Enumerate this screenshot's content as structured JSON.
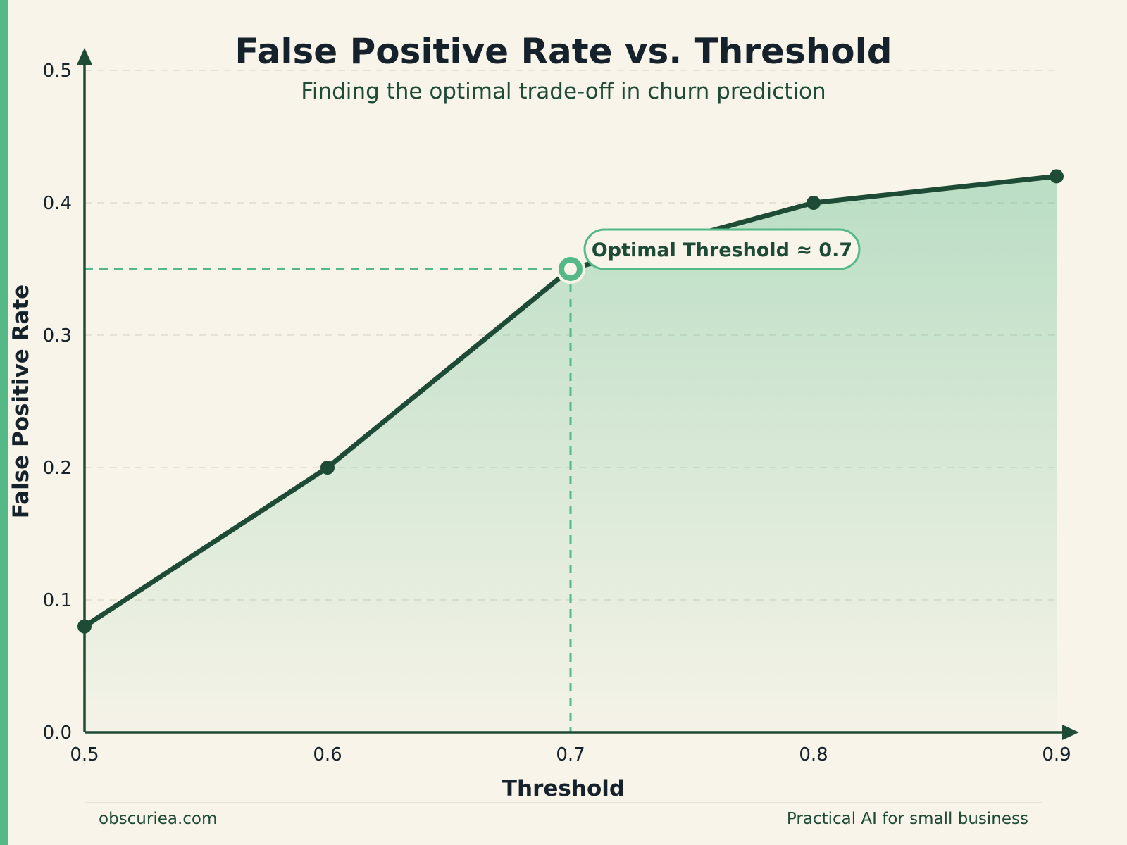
{
  "chart_data": {
    "type": "line",
    "title": "False Positive Rate vs. Threshold",
    "subtitle": "Finding the optimal trade-off in churn prediction",
    "xlabel": "Threshold",
    "ylabel": "False Positive Rate",
    "x": [
      0.5,
      0.6,
      0.7,
      0.8,
      0.9
    ],
    "series": [
      {
        "values": [
          0.08,
          0.2,
          0.35,
          0.4,
          0.42
        ]
      }
    ],
    "xlim": [
      0.5,
      0.9
    ],
    "ylim": [
      0,
      0.5
    ],
    "x_ticks": [
      "0.5",
      "0.6",
      "0.7",
      "0.8",
      "0.9"
    ],
    "y_ticks": [
      "0.0",
      "0.1",
      "0.2",
      "0.3",
      "0.4",
      "0.5"
    ],
    "grid": true,
    "fill_under_line": true,
    "annotation": {
      "x": 0.7,
      "y": 0.35,
      "text": "Optimal Threshold ≈ 0.7"
    },
    "colors": {
      "line": "#1e4b36",
      "highlight": "#55b987",
      "fill": "#55b987",
      "background": "#f8f4ea"
    }
  },
  "footer": {
    "left": "obscuriea.com",
    "right": "Practical AI for small business"
  }
}
